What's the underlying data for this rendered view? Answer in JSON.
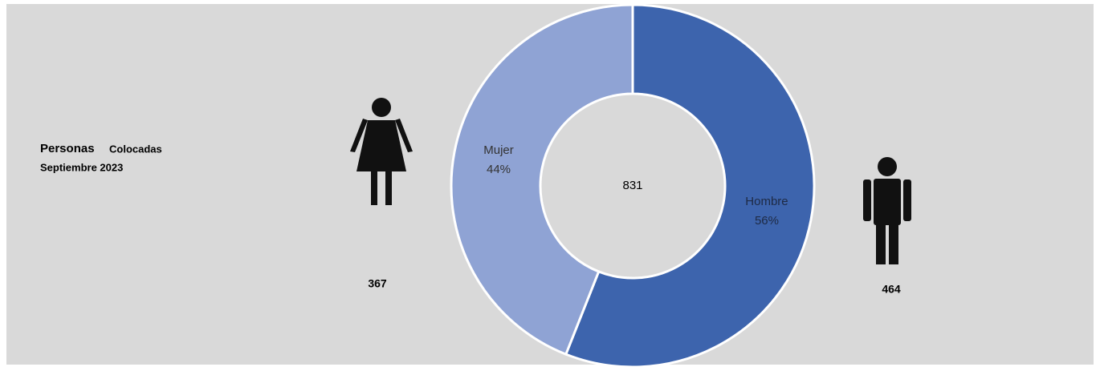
{
  "chart_data": {
    "type": "donut",
    "title": "Personas",
    "subtitle": "Colocadas",
    "period": "Septiembre 2023",
    "categories": [
      "Hombre",
      "Mujer"
    ],
    "values": [
      56,
      44
    ],
    "value_labels": [
      "56%",
      "44%"
    ],
    "colors": [
      "#3d64ad",
      "#8fa3d4"
    ],
    "counts": [
      464,
      367
    ],
    "total": 831
  }
}
